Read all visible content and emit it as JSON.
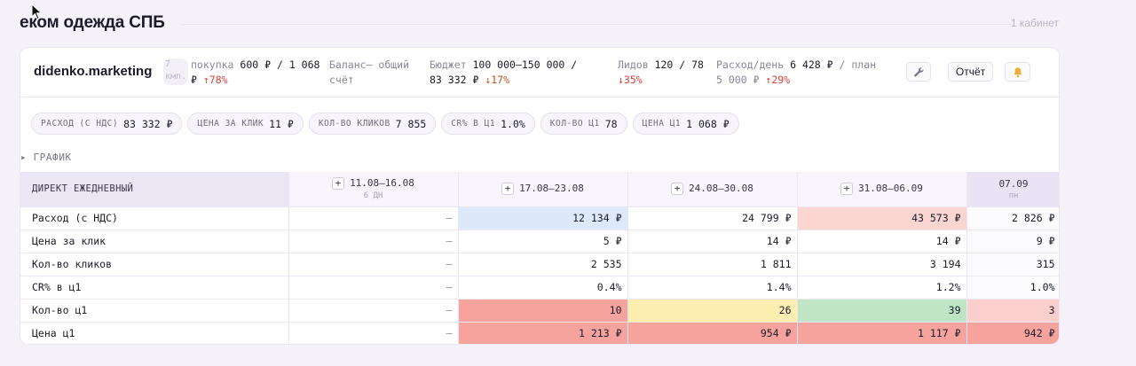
{
  "page": {
    "title": "еком одежда СПБ",
    "cabinet_count": "1 кабинет"
  },
  "header": {
    "brand": "didenko.marketing",
    "kmp": "7 кмп.",
    "purchase": {
      "label": "покупка",
      "value": "600 ₽",
      "plan": "/ 1 068 ₽",
      "delta": "↑78%"
    },
    "balance": {
      "label": "Баланс",
      "value": "— общий счёт"
    },
    "budget": {
      "label": "Бюджет",
      "value": "100 000–150 000",
      "plan": "/ 83 332 ₽",
      "delta": "↓17%"
    },
    "leads": {
      "label": "Лидов",
      "value": "120",
      "plan": "/ 78",
      "delta": "↓35%"
    },
    "spend_day": {
      "label": "Расход/день",
      "value": "6 428 ₽",
      "plan": "/ план 5 000 ₽",
      "delta": "↑29%"
    },
    "buttons": {
      "wrench": "wrench-icon",
      "report": "Отчёт",
      "bell": "bell-icon"
    }
  },
  "chips": [
    {
      "label": "РАСХОД (С НДС)",
      "value": "83 332 ₽"
    },
    {
      "label": "ЦЕНА ЗА КЛИК",
      "value": "11 ₽"
    },
    {
      "label": "КОЛ-ВО КЛИКОВ",
      "value": "7 855"
    },
    {
      "label": "CR% В Ц1",
      "value": "1.0%"
    },
    {
      "label": "КОЛ-ВО Ц1",
      "value": "78"
    },
    {
      "label": "ЦЕНА Ц1",
      "value": "1 068 ₽"
    }
  ],
  "graph_toggle": "▸ ГРАФИК",
  "table": {
    "row_header": "ДИРЕКТ ЕЖЕДНЕВНЫЙ",
    "columns": [
      {
        "label": "11.08–16.08",
        "sub": "6 ДН",
        "plus": "+"
      },
      {
        "label": "17.08–23.08",
        "plus": "+"
      },
      {
        "label": "24.08–30.08",
        "plus": "+"
      },
      {
        "label": "31.08–06.09",
        "plus": "+"
      },
      {
        "label": "07.09",
        "sub": "пн"
      }
    ],
    "rows": [
      {
        "metric": "Расход (с НДС)",
        "cells": [
          "—",
          "12 134 ₽",
          "24 799 ₽",
          "43 573 ₽",
          "2 826 ₽"
        ]
      },
      {
        "metric": "Цена за клик",
        "cells": [
          "—",
          "5 ₽",
          "14 ₽",
          "14 ₽",
          "9 ₽"
        ]
      },
      {
        "metric": "Кол-во кликов",
        "cells": [
          "—",
          "2 535",
          "1 811",
          "3 194",
          "315"
        ]
      },
      {
        "metric": "CR% в ц1",
        "cells": [
          "—",
          "0.4%",
          "1.4%",
          "1.2%",
          "1.0%"
        ]
      },
      {
        "metric": "Кол-во ц1",
        "cells": [
          "—",
          "10",
          "26",
          "39",
          "3"
        ]
      },
      {
        "metric": "Цена ц1",
        "cells": [
          "—",
          "1 213 ₽",
          "954 ₽",
          "1 117 ₽",
          "942 ₽"
        ]
      }
    ]
  },
  "colors": {
    "blue": "#dde9f8",
    "pink": "#fbd6d0",
    "red": "#f5a39c",
    "yellow": "#fcedb0",
    "green": "#bfe5c4",
    "rose": "#fbd0cc"
  }
}
